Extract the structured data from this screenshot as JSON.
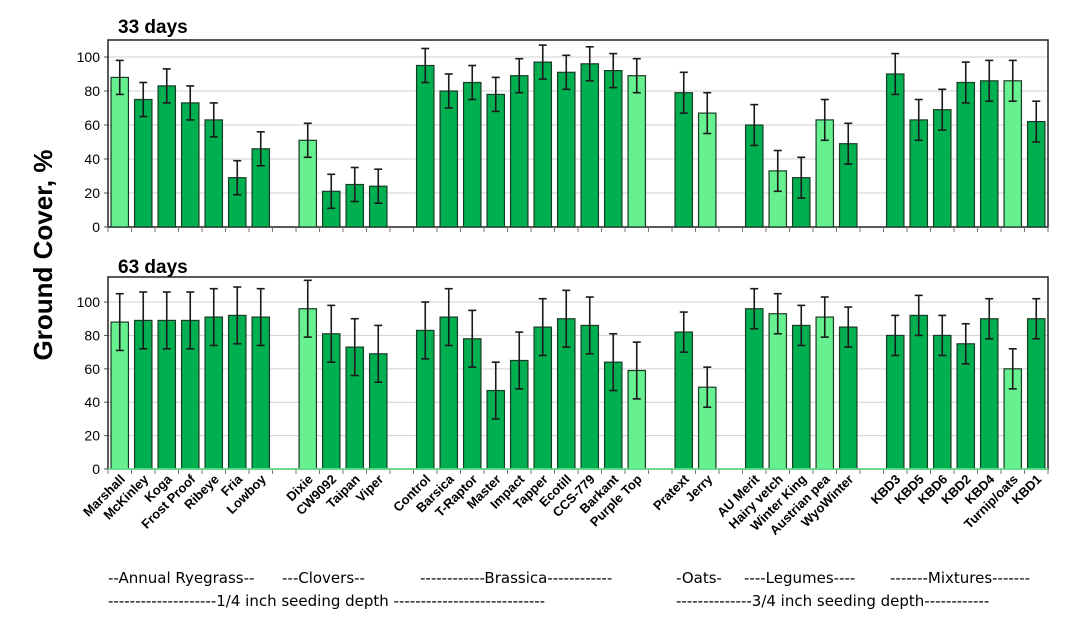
{
  "chart_data": {
    "type": "bar",
    "ylabel": "Ground Cover, %",
    "colors": {
      "dark": "#00b050",
      "light": "#66f08f",
      "error_bar": "#1a1a1a",
      "grid": "#d0d0d0"
    },
    "categories": [
      "Marshall",
      "McKinley",
      "Koga",
      "Frost Proof",
      "Ribeye",
      "Fria",
      "Lowboy",
      "Dixie",
      "CW9092",
      "Taipan",
      "Viper",
      "Control",
      "Barsica",
      "T-Raptor",
      "Master",
      "Impact",
      "Tapper",
      "Ecotill",
      "CCS-779",
      "Barkant",
      "Purple Top",
      "Pratext",
      "Jerry",
      "AU Merit",
      "Hairy vetch",
      "Winter King",
      "Austrian pea",
      "WyoWinter",
      "KBD3",
      "KBD5",
      "KBD6",
      "KBD2",
      "KBD4",
      "Turnip/oats",
      "KBD1"
    ],
    "group_sizes": [
      7,
      4,
      10,
      2,
      5,
      7
    ],
    "light_categories": [
      "Marshall",
      "Dixie",
      "Purple Top",
      "Jerry",
      "Hairy vetch",
      "Austrian pea",
      "Turnip/oats"
    ],
    "panels": [
      {
        "title": "33 days",
        "ylim": [
          0,
          110
        ],
        "yticks": [
          0,
          20,
          40,
          60,
          80,
          100
        ],
        "grid": true,
        "values": [
          88,
          75,
          83,
          73,
          63,
          29,
          46,
          51,
          21,
          25,
          24,
          95,
          80,
          85,
          78,
          89,
          97,
          91,
          96,
          92,
          89,
          79,
          67,
          60,
          33,
          29,
          63,
          49,
          90,
          63,
          69,
          85,
          86,
          86,
          62
        ],
        "errors": [
          10,
          10,
          10,
          10,
          10,
          10,
          10,
          10,
          10,
          10,
          10,
          10,
          10,
          10,
          10,
          10,
          10,
          10,
          10,
          10,
          10,
          12,
          12,
          12,
          12,
          12,
          12,
          12,
          12,
          12,
          12,
          12,
          12,
          12,
          12
        ]
      },
      {
        "title": "63 days",
        "ylim": [
          0,
          115
        ],
        "yticks": [
          0,
          20,
          40,
          60,
          80,
          100
        ],
        "grid": true,
        "values": [
          88,
          89,
          89,
          89,
          91,
          92,
          91,
          96,
          81,
          73,
          69,
          83,
          91,
          78,
          47,
          65,
          85,
          90,
          86,
          64,
          59,
          82,
          49,
          96,
          93,
          86,
          91,
          85,
          80,
          92,
          80,
          75,
          90,
          60,
          90
        ],
        "errors": [
          17,
          17,
          17,
          17,
          17,
          17,
          17,
          17,
          17,
          17,
          17,
          17,
          17,
          17,
          17,
          17,
          17,
          17,
          17,
          17,
          17,
          12,
          12,
          12,
          12,
          12,
          12,
          12,
          12,
          12,
          12,
          12,
          12,
          12,
          12
        ]
      }
    ],
    "group_labels": [
      "--Annual Ryegrass--",
      "---Clovers--",
      "------------Brassica------------",
      "-Oats-",
      "----Legumes----",
      "-------Mixtures-------"
    ],
    "depth_labels": [
      "--------------------1/4 inch seeding depth ----------------------------",
      "--------------3/4 inch seeding depth------------"
    ]
  }
}
